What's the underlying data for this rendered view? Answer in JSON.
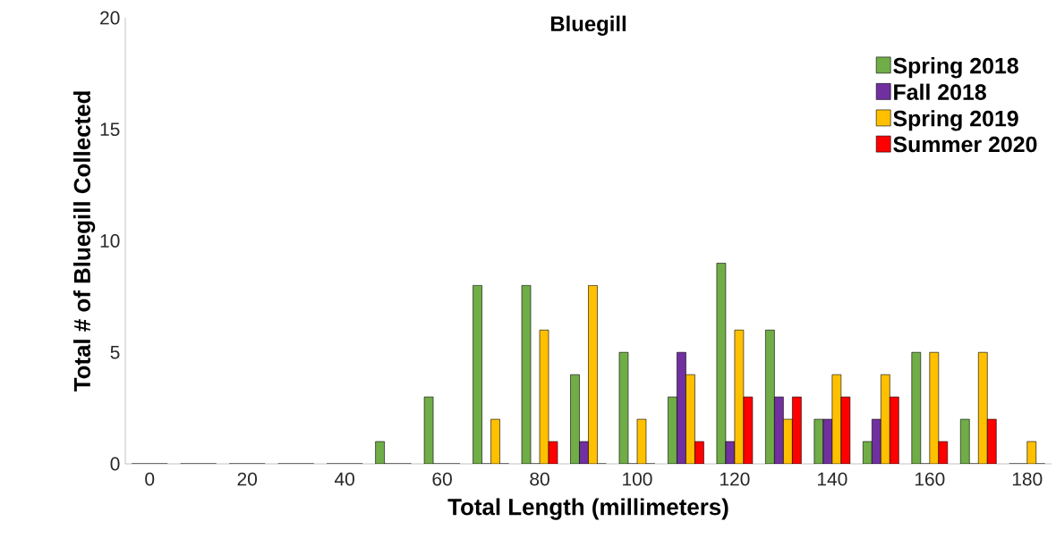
{
  "chart_data": {
    "type": "bar",
    "title": "Bluegill",
    "xlabel": "Total Length (millimeters)",
    "ylabel": "Total # of Bluegill Collected",
    "categories": [
      "0",
      null,
      "20",
      null,
      "40",
      null,
      "60",
      null,
      "80",
      null,
      "100",
      null,
      "120",
      null,
      "140",
      null,
      "160",
      null,
      "180"
    ],
    "series": [
      {
        "name": "Spring 2018",
        "color": "#70ad47",
        "values": [
          0,
          0,
          0,
          0,
          0,
          1,
          3,
          8,
          8,
          4,
          5,
          3,
          9,
          6,
          2,
          1,
          5,
          2,
          0
        ]
      },
      {
        "name": "Fall 2018",
        "color": "#7030a0",
        "values": [
          0,
          0,
          0,
          0,
          0,
          0,
          0,
          0,
          0,
          1,
          0,
          5,
          1,
          3,
          2,
          2,
          0,
          0,
          0
        ]
      },
      {
        "name": "Spring 2019",
        "color": "#ffc000",
        "values": [
          0,
          0,
          0,
          0,
          0,
          0,
          0,
          2,
          6,
          8,
          2,
          4,
          6,
          2,
          4,
          4,
          5,
          5,
          1
        ]
      },
      {
        "name": "Summer 2020",
        "color": "#ff0000",
        "values": [
          0,
          0,
          0,
          0,
          0,
          0,
          0,
          0,
          1,
          0,
          0,
          1,
          3,
          3,
          3,
          3,
          1,
          2,
          0
        ]
      }
    ],
    "ylim": [
      0,
      20
    ],
    "yticks": [
      0,
      5,
      10,
      15,
      20
    ],
    "legend": "top right"
  }
}
